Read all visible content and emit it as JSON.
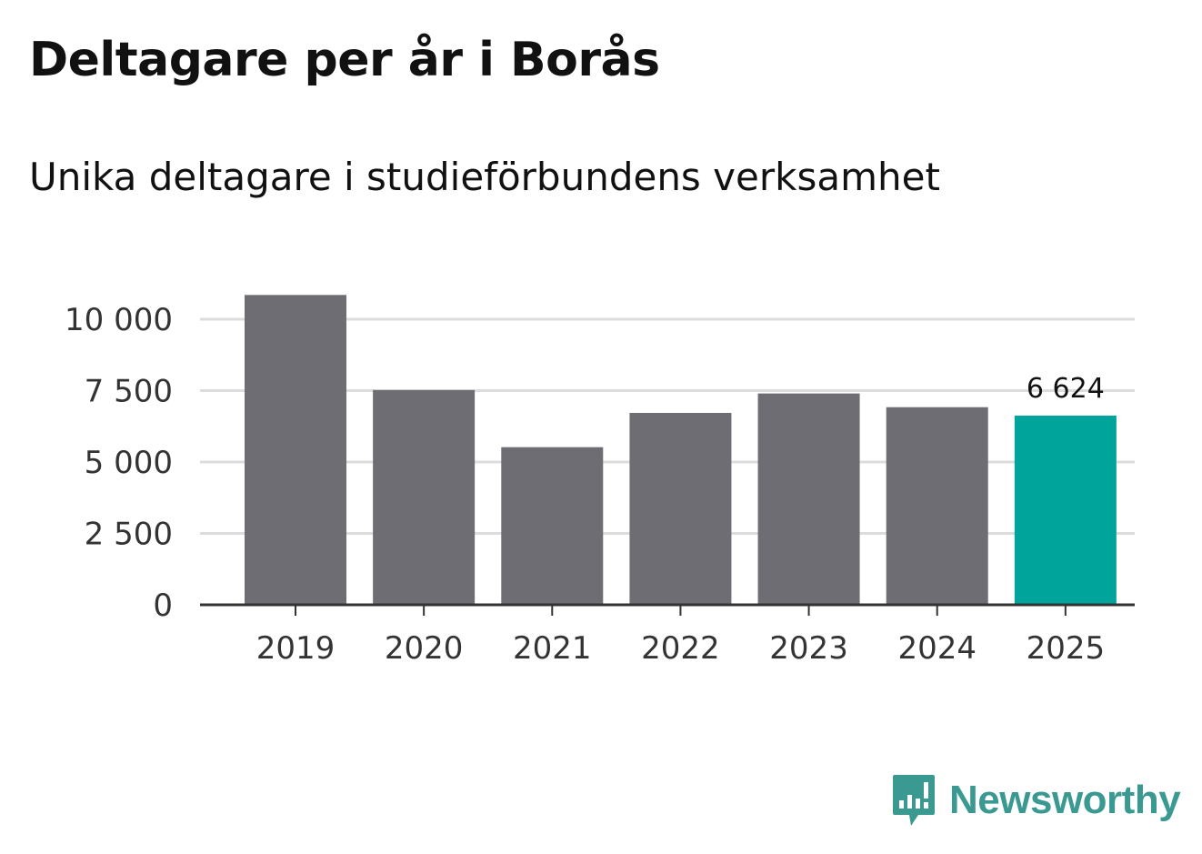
{
  "header": {
    "title": "Deltagare per år i Borås",
    "subtitle": "Unika deltagare i studieförbundens verksamhet"
  },
  "colors": {
    "bar_default": "#6e6d73",
    "bar_highlight": "#00a49a",
    "grid": "#dcdcdc",
    "axis": "#333333",
    "brand": "#3a9a92"
  },
  "chart_data": {
    "type": "bar",
    "title": "Deltagare per år i Borås",
    "subtitle": "Unika deltagare i studieförbundens verksamhet",
    "xlabel": "",
    "ylabel": "",
    "categories": [
      "2019",
      "2020",
      "2021",
      "2022",
      "2023",
      "2024",
      "2025"
    ],
    "values": [
      10850,
      7520,
      5520,
      6720,
      7400,
      6920,
      6624
    ],
    "highlight_index": 6,
    "highlight_label": "6 624",
    "ylim": [
      0,
      11000
    ],
    "yticks": [
      0,
      2500,
      5000,
      7500,
      10000
    ],
    "ytick_labels": [
      "0",
      "2 500",
      "5 000",
      "7 500",
      "10 000"
    ],
    "grid": true
  },
  "brand": {
    "name": "Newsworthy",
    "logo_icon": "newsworthy-bar-chart-bubble-icon"
  }
}
